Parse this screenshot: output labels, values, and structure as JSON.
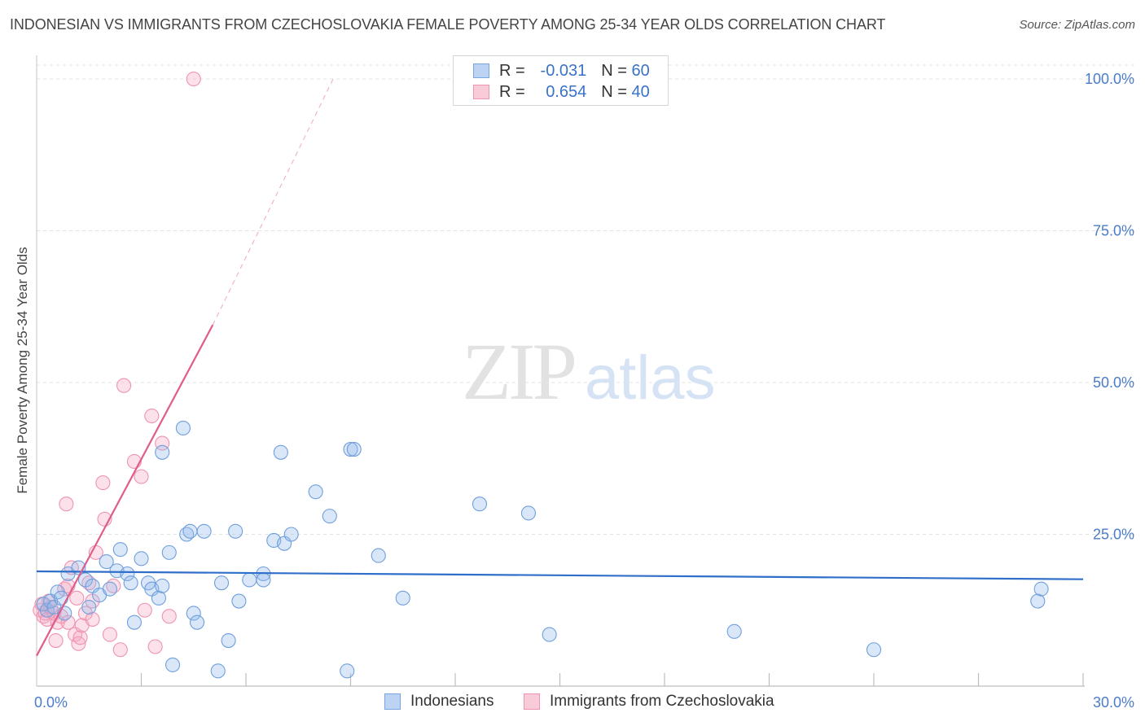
{
  "title": "INDONESIAN VS IMMIGRANTS FROM CZECHOSLOVAKIA FEMALE POVERTY AMONG 25-34 YEAR OLDS CORRELATION CHART",
  "source": "Source: ZipAtlas.com",
  "watermark": {
    "zip": "ZIP",
    "atlas": "atlas"
  },
  "legend": {
    "rows": [
      {
        "r_label": "R =",
        "r_value": "-0.031",
        "n_label": "N =",
        "n_value": "60"
      },
      {
        "r_label": "R =",
        "r_value": "0.654",
        "n_label": "N =",
        "n_value": "40"
      }
    ]
  },
  "bottom_legend": [
    "Indonesians",
    "Immigrants from Czechoslovakia"
  ],
  "chart_data": {
    "type": "scatter",
    "title": "INDONESIAN VS IMMIGRANTS FROM CZECHOSLOVAKIA FEMALE POVERTY AMONG 25-34 YEAR OLDS CORRELATION CHART",
    "xlabel": "",
    "ylabel": "Female Poverty Among 25-34 Year Olds",
    "xlim": [
      0,
      30
    ],
    "ylim": [
      0,
      100
    ],
    "x_tick_labels": [
      "0.0%",
      "30.0%"
    ],
    "y_tick_values": [
      25,
      50,
      75,
      100
    ],
    "y_tick_labels": [
      "25.0%",
      "50.0%",
      "75.0%",
      "100.0%"
    ],
    "grid": true,
    "colors": {
      "Indonesians": "#6f9fdc",
      "Immigrants from Czechoslovakia": "#ef93af",
      "blue_line": "#2f6fc9",
      "pink_line": "#e05c8a"
    },
    "series": [
      {
        "name": "Indonesians",
        "R": -0.031,
        "N": 60,
        "trend": {
          "x": [
            0,
            30
          ],
          "y": [
            18.9,
            17.6
          ]
        },
        "points": [
          [
            0.2,
            13.5
          ],
          [
            0.3,
            12.5
          ],
          [
            0.4,
            14.0
          ],
          [
            0.5,
            13.0
          ],
          [
            0.6,
            15.5
          ],
          [
            0.7,
            14.5
          ],
          [
            0.9,
            18.5
          ],
          [
            1.2,
            19.5
          ],
          [
            1.4,
            17.5
          ],
          [
            1.5,
            13.0
          ],
          [
            1.6,
            16.5
          ],
          [
            1.8,
            15.0
          ],
          [
            2.1,
            16.0
          ],
          [
            2.0,
            20.5
          ],
          [
            2.3,
            19.0
          ],
          [
            2.4,
            22.5
          ],
          [
            2.6,
            18.5
          ],
          [
            2.7,
            17.0
          ],
          [
            2.8,
            10.5
          ],
          [
            3.0,
            21.0
          ],
          [
            3.2,
            17.0
          ],
          [
            3.3,
            16.0
          ],
          [
            3.5,
            14.5
          ],
          [
            3.6,
            16.5
          ],
          [
            3.8,
            22.0
          ],
          [
            3.9,
            3.5
          ],
          [
            4.2,
            42.5
          ],
          [
            4.3,
            25.0
          ],
          [
            4.4,
            25.5
          ],
          [
            4.5,
            12.0
          ],
          [
            4.6,
            10.5
          ],
          [
            4.8,
            25.5
          ],
          [
            5.2,
            2.5
          ],
          [
            5.3,
            17.0
          ],
          [
            5.5,
            7.5
          ],
          [
            5.7,
            25.5
          ],
          [
            5.8,
            14.0
          ],
          [
            6.1,
            17.5
          ],
          [
            6.5,
            18.5
          ],
          [
            6.5,
            17.5
          ],
          [
            6.8,
            24.0
          ],
          [
            7.0,
            38.5
          ],
          [
            7.1,
            23.5
          ],
          [
            7.3,
            25.0
          ],
          [
            8.0,
            32.0
          ],
          [
            8.4,
            28.0
          ],
          [
            8.9,
            2.5
          ],
          [
            9.0,
            39.0
          ],
          [
            9.1,
            39.0
          ],
          [
            9.8,
            21.5
          ],
          [
            10.5,
            14.5
          ],
          [
            12.7,
            30.0
          ],
          [
            14.1,
            28.5
          ],
          [
            14.7,
            8.5
          ],
          [
            20.0,
            9.0
          ],
          [
            24.0,
            6.0
          ],
          [
            28.7,
            14.0
          ],
          [
            28.8,
            16.0
          ],
          [
            3.6,
            38.5
          ],
          [
            0.8,
            12.0
          ]
        ]
      },
      {
        "name": "Immigrants from Czechoslovakia",
        "R": 0.654,
        "N": 40,
        "trend": {
          "x": [
            0,
            5.05
          ],
          "y": [
            5.0,
            59.5
          ]
        },
        "trend_dashed": {
          "x": [
            5.05,
            8.5
          ],
          "y": [
            59.5,
            100
          ]
        },
        "points": [
          [
            0.1,
            12.5
          ],
          [
            0.2,
            11.5
          ],
          [
            0.25,
            12.0
          ],
          [
            0.3,
            11.0
          ],
          [
            0.4,
            13.0
          ],
          [
            0.5,
            12.0
          ],
          [
            0.6,
            10.5
          ],
          [
            0.7,
            11.5
          ],
          [
            0.8,
            16.0
          ],
          [
            0.9,
            16.5
          ],
          [
            0.9,
            10.5
          ],
          [
            1.0,
            19.5
          ],
          [
            0.85,
            30.0
          ],
          [
            1.1,
            8.5
          ],
          [
            1.2,
            7.0
          ],
          [
            1.25,
            8.0
          ],
          [
            1.3,
            10.0
          ],
          [
            1.4,
            12.0
          ],
          [
            1.5,
            17.0
          ],
          [
            1.6,
            14.0
          ],
          [
            1.6,
            11.0
          ],
          [
            1.7,
            22.0
          ],
          [
            1.9,
            33.5
          ],
          [
            1.95,
            27.5
          ],
          [
            2.1,
            8.5
          ],
          [
            2.2,
            16.5
          ],
          [
            2.4,
            6.0
          ],
          [
            2.5,
            49.5
          ],
          [
            2.8,
            37.0
          ],
          [
            3.0,
            34.5
          ],
          [
            3.1,
            12.5
          ],
          [
            3.3,
            44.5
          ],
          [
            3.4,
            6.5
          ],
          [
            3.6,
            40.0
          ],
          [
            3.8,
            11.5
          ],
          [
            0.55,
            7.5
          ],
          [
            1.15,
            14.5
          ],
          [
            4.5,
            100
          ],
          [
            0.35,
            14.0
          ],
          [
            0.15,
            13.5
          ]
        ]
      }
    ]
  }
}
